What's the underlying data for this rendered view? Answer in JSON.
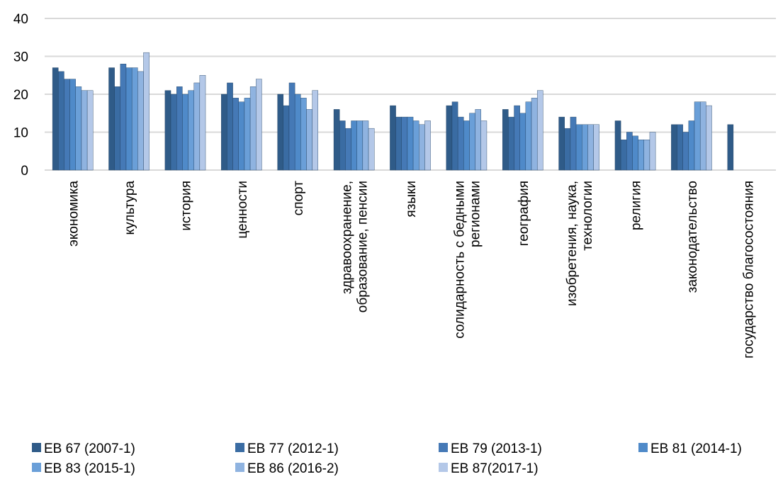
{
  "chart_data": {
    "type": "bar",
    "categories": [
      "экономика",
      "культура",
      "история",
      "ценности",
      "спорт",
      "здравоохранение,\nобразование, пенсии",
      "языки",
      "солидарность с бедными\nрегионами",
      "география",
      "изобретения, наука,\nтехнологии",
      "религия",
      "законодательство",
      "государство благосостояния"
    ],
    "series": [
      {
        "name": "EB 67 (2007-1)",
        "color": "#2f5b88",
        "values": [
          27,
          27,
          21,
          20,
          20,
          16,
          17,
          17,
          16,
          14,
          13,
          12,
          12
        ]
      },
      {
        "name": "EB 77 (2012-1)",
        "color": "#3a6ca3",
        "values": [
          26,
          22,
          20,
          23,
          17,
          13,
          14,
          18,
          14,
          11,
          8,
          12,
          null
        ]
      },
      {
        "name": "EB 79 (2013-1)",
        "color": "#4579b6",
        "values": [
          24,
          28,
          22,
          19,
          23,
          11,
          14,
          14,
          17,
          14,
          10,
          10,
          null
        ]
      },
      {
        "name": "EB 81 (2014-1)",
        "color": "#4f8ac9",
        "values": [
          24,
          27,
          20,
          18,
          20,
          13,
          14,
          13,
          15,
          12,
          9,
          13,
          null
        ]
      },
      {
        "name": "EB 83 (2015-1)",
        "color": "#6a9fd8",
        "values": [
          22,
          27,
          21,
          19,
          19,
          13,
          13,
          15,
          18,
          12,
          8,
          18,
          null
        ]
      },
      {
        "name": "EB 86 (2016-2)",
        "color": "#8fb3e0",
        "values": [
          21,
          26,
          23,
          22,
          16,
          13,
          12,
          16,
          19,
          12,
          8,
          18,
          null
        ]
      },
      {
        "name": "EB 87(2017-1)",
        "color": "#b4c8e8",
        "values": [
          21,
          31,
          25,
          24,
          21,
          11,
          13,
          13,
          21,
          12,
          10,
          17,
          null
        ]
      }
    ],
    "ylim": [
      0,
      40
    ],
    "yticks": [
      0,
      10,
      20,
      30,
      40
    ],
    "grid": true,
    "legend": "bottom"
  }
}
